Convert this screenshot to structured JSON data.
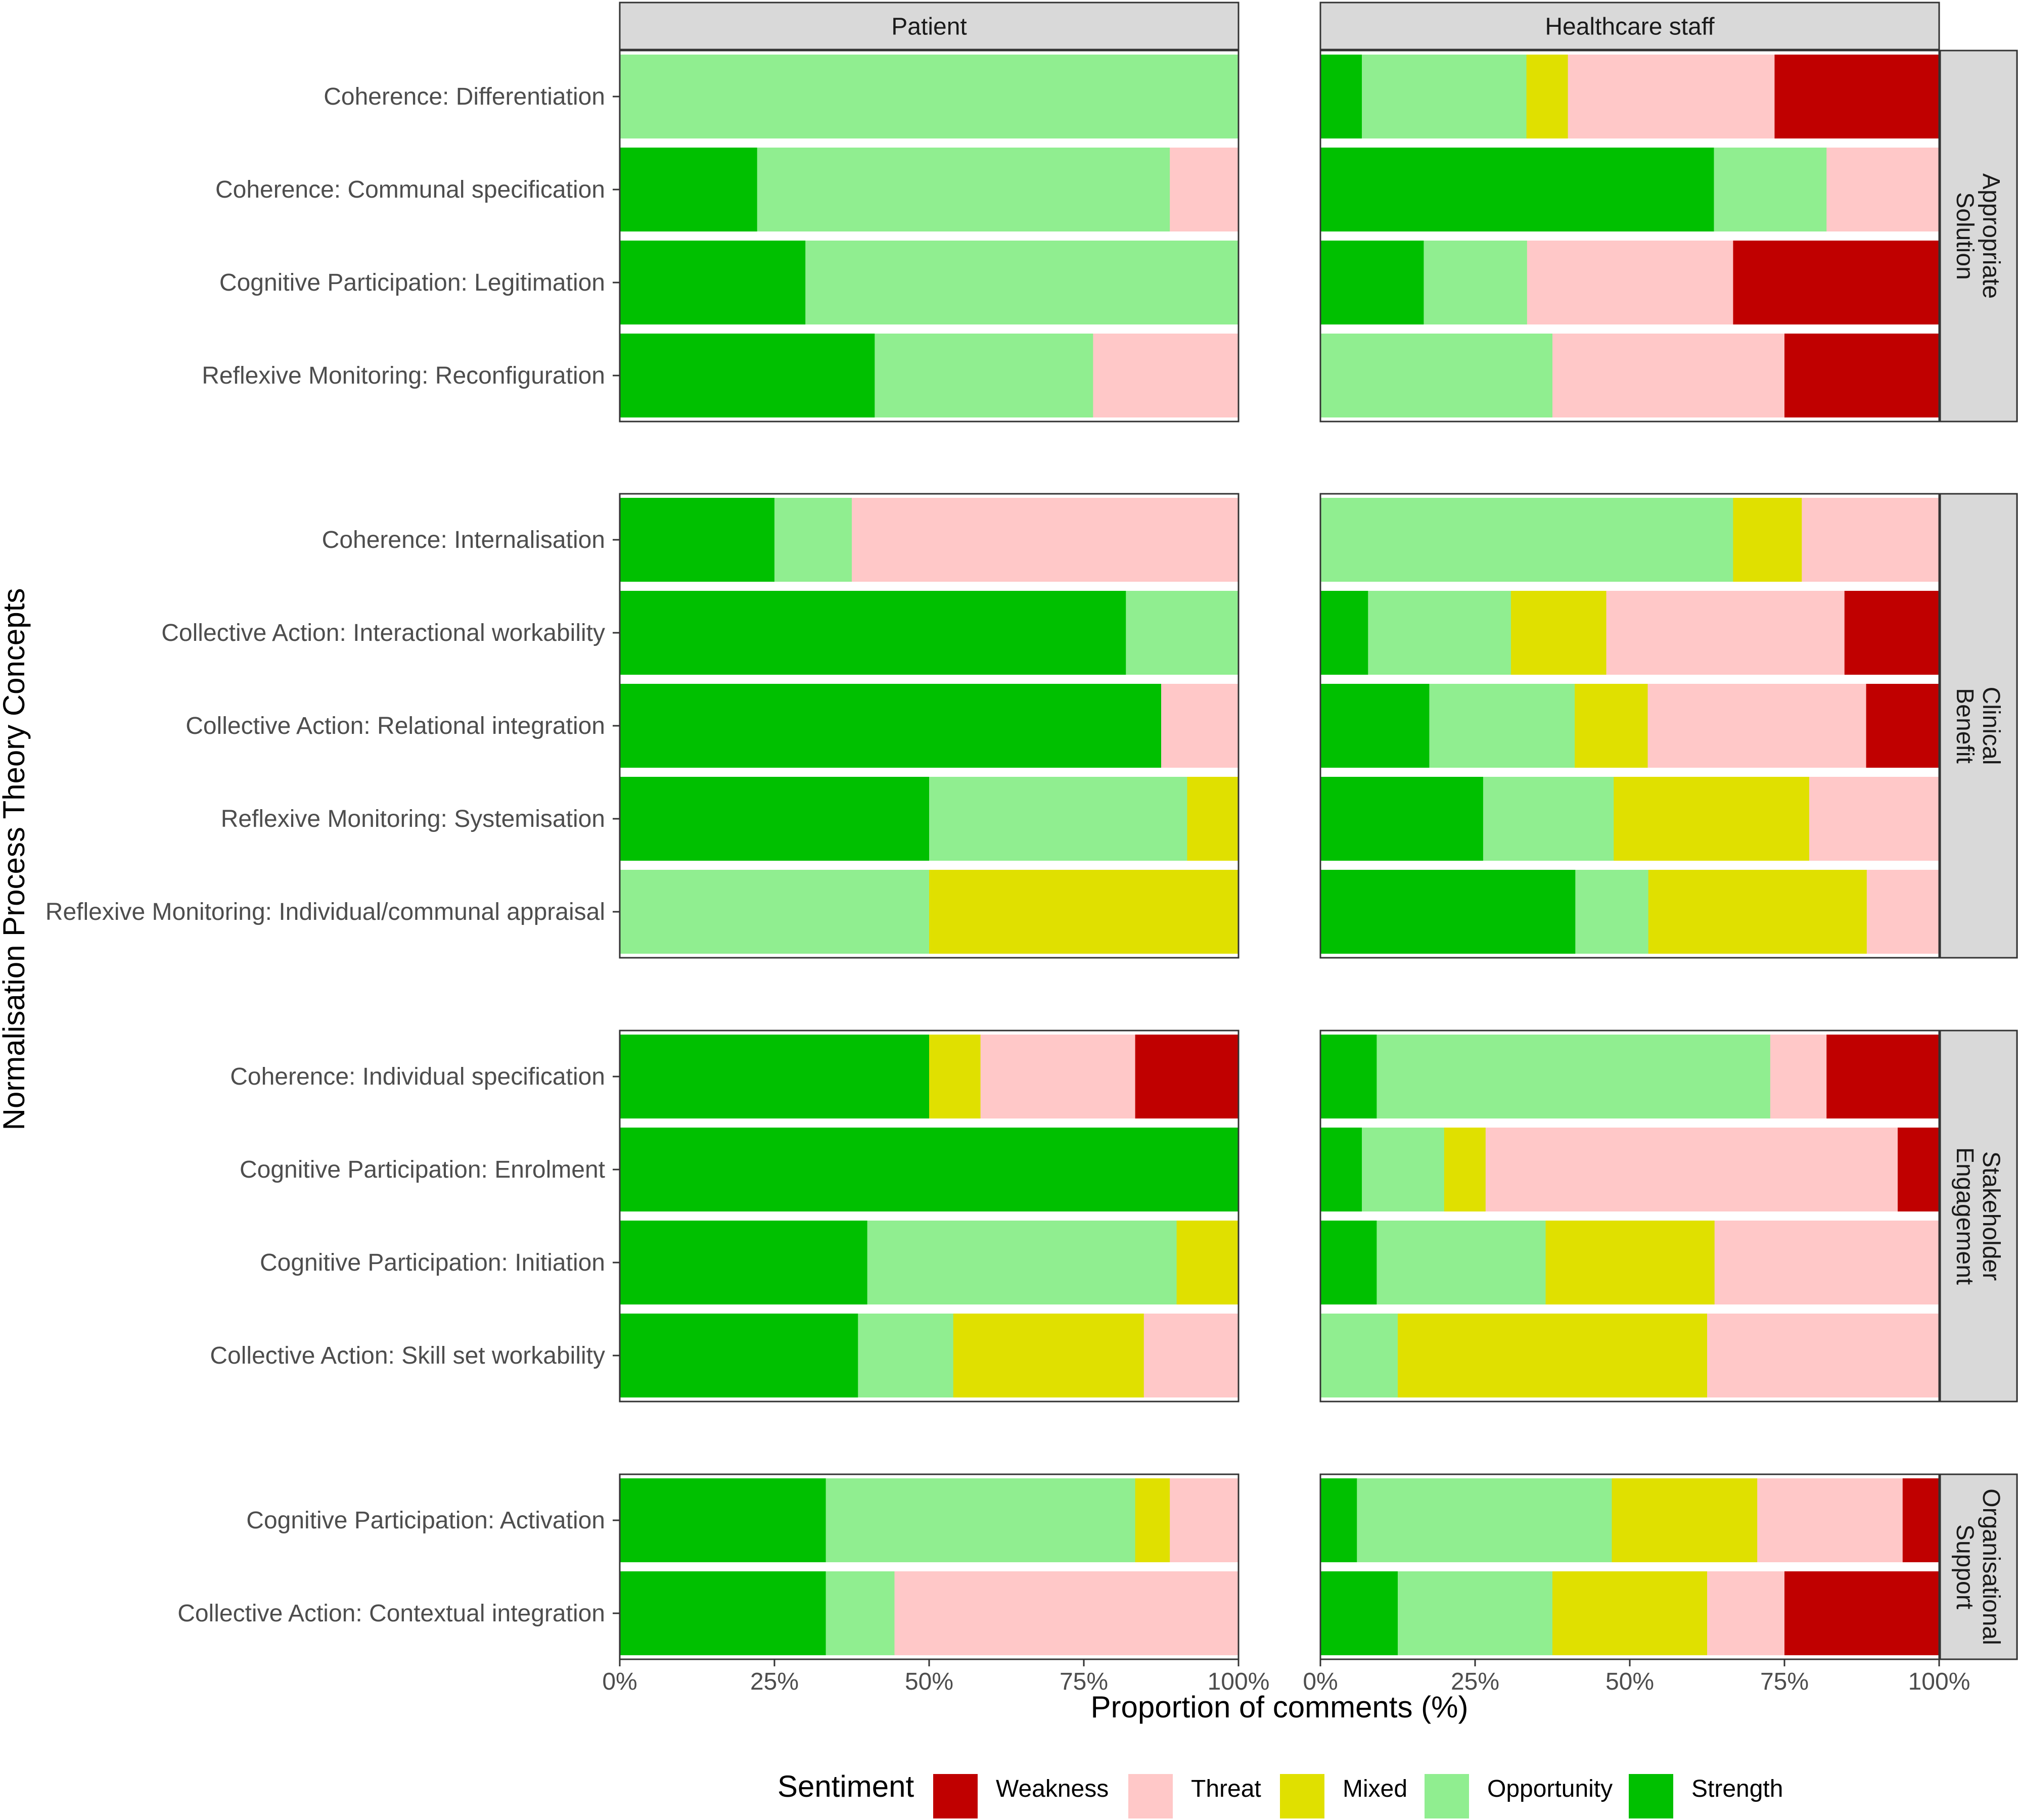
{
  "chart_data": {
    "type": "bar",
    "stacked": true,
    "orientation": "horizontal",
    "xlabel": "Proportion of comments (%)",
    "ylabel": "Normalisation Process Theory Concepts",
    "xlim": [
      0,
      100
    ],
    "x_ticks": [
      "0%",
      "25%",
      "50%",
      "75%",
      "100%"
    ],
    "panels": [
      "Patient",
      "Healthcare staff"
    ],
    "legend": {
      "title": "Sentiment",
      "position": "bottom",
      "items": [
        {
          "name": "Weakness",
          "color": "#C00000"
        },
        {
          "name": "Threat",
          "color": "#FFC8C8"
        },
        {
          "name": "Mixed",
          "color": "#E0E000"
        },
        {
          "name": "Opportunity",
          "color": "#90EE90"
        },
        {
          "name": "Strength",
          "color": "#00C000"
        }
      ]
    },
    "stack_order": [
      "Strength",
      "Opportunity",
      "Mixed",
      "Threat",
      "Weakness"
    ],
    "groups": [
      {
        "name": "Appropriate Solution",
        "strip_lines": [
          "Appropriate",
          "Solution"
        ],
        "rows": [
          {
            "label": "Coherence: Differentiation",
            "patient": {
              "Strength": 0,
              "Opportunity": 100,
              "Mixed": 0,
              "Threat": 0,
              "Weakness": 0
            },
            "staff": {
              "Strength": 6.7,
              "Opportunity": 26.6,
              "Mixed": 6.7,
              "Threat": 33.4,
              "Weakness": 26.6
            }
          },
          {
            "label": "Coherence: Communal specification",
            "patient": {
              "Strength": 22.2,
              "Opportunity": 66.7,
              "Mixed": 0,
              "Threat": 11.1,
              "Weakness": 0
            },
            "staff": {
              "Strength": 63.6,
              "Opportunity": 18.2,
              "Mixed": 0,
              "Threat": 18.2,
              "Weakness": 0
            }
          },
          {
            "label": "Cognitive Participation: Legitimation",
            "patient": {
              "Strength": 30,
              "Opportunity": 70,
              "Mixed": 0,
              "Threat": 0,
              "Weakness": 0
            },
            "staff": {
              "Strength": 16.7,
              "Opportunity": 16.7,
              "Mixed": 0,
              "Threat": 33.3,
              "Weakness": 33.3
            }
          },
          {
            "label": "Reflexive Monitoring: Reconfiguration",
            "patient": {
              "Strength": 41.2,
              "Opportunity": 35.3,
              "Mixed": 0,
              "Threat": 23.5,
              "Weakness": 0
            },
            "staff": {
              "Strength": 0,
              "Opportunity": 37.5,
              "Mixed": 0,
              "Threat": 37.5,
              "Weakness": 25
            }
          }
        ]
      },
      {
        "name": "Clinical Benefit",
        "strip_lines": [
          "Clinical",
          "Benefit"
        ],
        "rows": [
          {
            "label": "Coherence: Internalisation",
            "patient": {
              "Strength": 25,
              "Opportunity": 12.5,
              "Mixed": 0,
              "Threat": 62.5,
              "Weakness": 0
            },
            "staff": {
              "Strength": 0,
              "Opportunity": 66.7,
              "Mixed": 11.1,
              "Threat": 22.2,
              "Weakness": 0
            }
          },
          {
            "label": "Collective Action: Interactional workability",
            "patient": {
              "Strength": 81.8,
              "Opportunity": 18.2,
              "Mixed": 0,
              "Threat": 0,
              "Weakness": 0
            },
            "staff": {
              "Strength": 7.7,
              "Opportunity": 23.1,
              "Mixed": 15.4,
              "Threat": 38.5,
              "Weakness": 15.3
            }
          },
          {
            "label": "Collective Action: Relational integration",
            "patient": {
              "Strength": 87.5,
              "Opportunity": 0,
              "Mixed": 0,
              "Threat": 12.5,
              "Weakness": 0
            },
            "staff": {
              "Strength": 17.6,
              "Opportunity": 23.5,
              "Mixed": 11.8,
              "Threat": 35.3,
              "Weakness": 11.8
            }
          },
          {
            "label": "Reflexive Monitoring: Systemisation",
            "patient": {
              "Strength": 50,
              "Opportunity": 41.7,
              "Mixed": 8.3,
              "Threat": 0,
              "Weakness": 0
            },
            "staff": {
              "Strength": 26.3,
              "Opportunity": 21.1,
              "Mixed": 31.6,
              "Threat": 21,
              "Weakness": 0
            }
          },
          {
            "label": "Reflexive Monitoring: Individual/communal appraisal",
            "patient": {
              "Strength": 0,
              "Opportunity": 50,
              "Mixed": 50,
              "Threat": 0,
              "Weakness": 0
            },
            "staff": {
              "Strength": 41.2,
              "Opportunity": 11.8,
              "Mixed": 35.3,
              "Threat": 11.7,
              "Weakness": 0
            }
          }
        ]
      },
      {
        "name": "Stakeholder Engagement",
        "strip_lines": [
          "Stakeholder",
          "Engagement"
        ],
        "rows": [
          {
            "label": "Coherence: Individual specification",
            "patient": {
              "Strength": 50,
              "Opportunity": 0,
              "Mixed": 8.3,
              "Threat": 25,
              "Weakness": 16.7
            },
            "staff": {
              "Strength": 9.1,
              "Opportunity": 63.6,
              "Mixed": 0,
              "Threat": 9.1,
              "Weakness": 18.2
            }
          },
          {
            "label": "Cognitive Participation: Enrolment",
            "patient": {
              "Strength": 100,
              "Opportunity": 0,
              "Mixed": 0,
              "Threat": 0,
              "Weakness": 0
            },
            "staff": {
              "Strength": 6.7,
              "Opportunity": 13.3,
              "Mixed": 6.7,
              "Threat": 66.6,
              "Weakness": 6.7
            }
          },
          {
            "label": "Cognitive Participation: Initiation",
            "patient": {
              "Strength": 40,
              "Opportunity": 50,
              "Mixed": 10,
              "Threat": 0,
              "Weakness": 0
            },
            "staff": {
              "Strength": 9.1,
              "Opportunity": 27.3,
              "Mixed": 27.3,
              "Threat": 36.3,
              "Weakness": 0
            }
          },
          {
            "label": "Collective Action: Skill set workability",
            "patient": {
              "Strength": 38.5,
              "Opportunity": 15.4,
              "Mixed": 30.8,
              "Threat": 15.3,
              "Weakness": 0
            },
            "staff": {
              "Strength": 0,
              "Opportunity": 12.5,
              "Mixed": 50,
              "Threat": 37.5,
              "Weakness": 0
            }
          }
        ]
      },
      {
        "name": "Organisational Support",
        "strip_lines": [
          "Organisational",
          "Support"
        ],
        "rows": [
          {
            "label": "Cognitive Participation: Activation",
            "patient": {
              "Strength": 33.3,
              "Opportunity": 50,
              "Mixed": 5.6,
              "Threat": 11.1,
              "Weakness": 0
            },
            "staff": {
              "Strength": 5.9,
              "Opportunity": 41.2,
              "Mixed": 23.5,
              "Threat": 23.5,
              "Weakness": 5.9
            }
          },
          {
            "label": "Collective Action: Contextual integration",
            "patient": {
              "Strength": 33.3,
              "Opportunity": 11.1,
              "Mixed": 0,
              "Threat": 55.6,
              "Weakness": 0
            },
            "staff": {
              "Strength": 12.5,
              "Opportunity": 25,
              "Mixed": 25,
              "Threat": 12.5,
              "Weakness": 25
            }
          }
        ]
      }
    ]
  }
}
